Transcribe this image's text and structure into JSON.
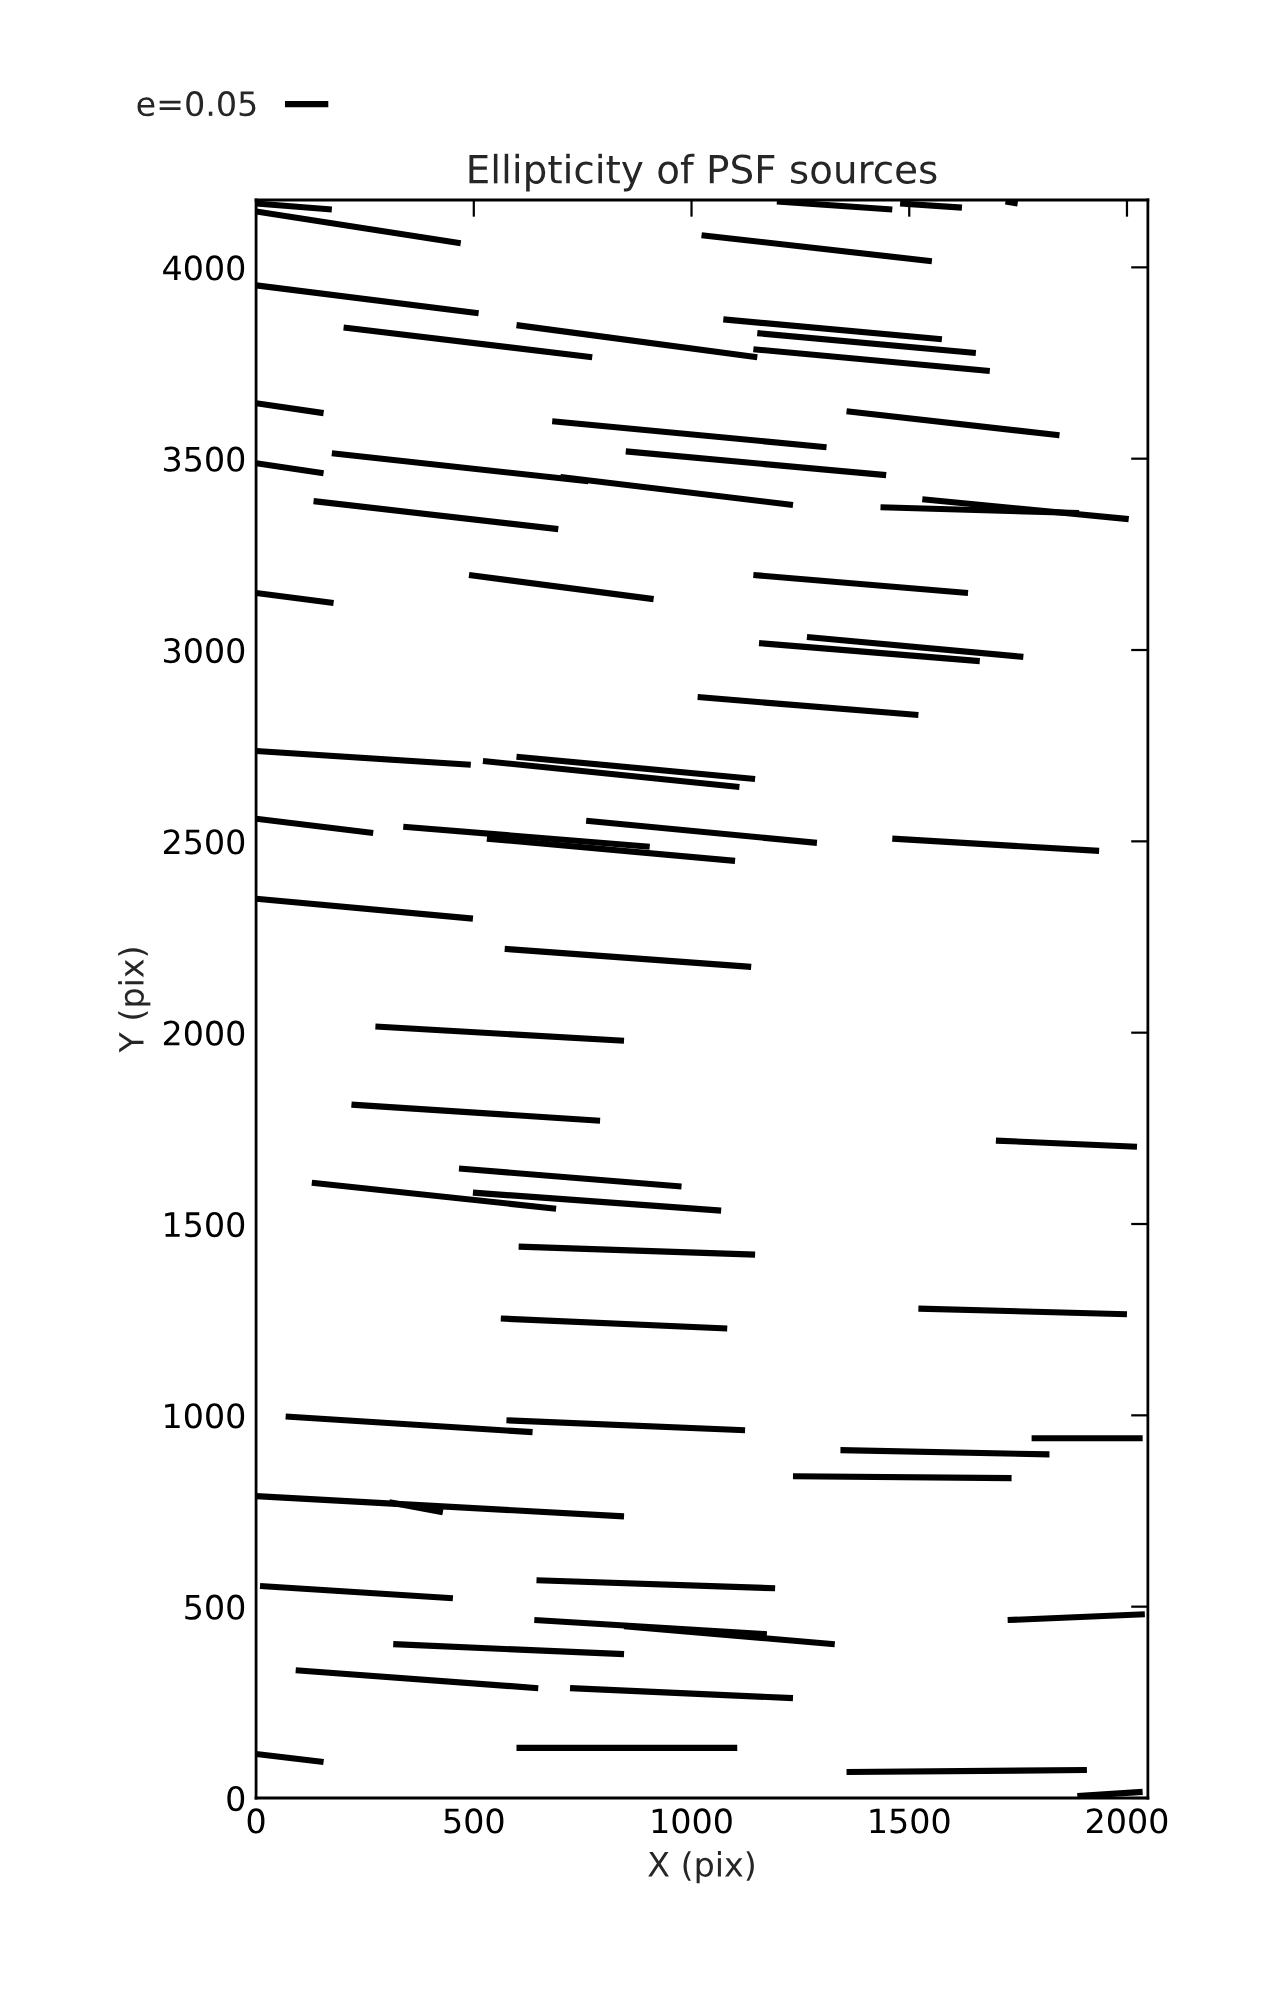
{
  "chart_data": {
    "type": "line",
    "title": "Ellipticity of PSF sources",
    "xlabel": "X (pix)",
    "ylabel": "Y (pix)",
    "xlim": [
      0,
      2048
    ],
    "ylim": [
      0,
      4176
    ],
    "xticks": [
      0,
      500,
      1000,
      1500,
      2000
    ],
    "yticks": [
      0,
      500,
      1000,
      1500,
      2000,
      2500,
      3000,
      3500,
      4000
    ],
    "grid": false,
    "legend": "top left",
    "marker": "none",
    "line_style": "solid",
    "color": "#000000",
    "series": [
      {
        "name": "e=0.05",
        "x": [
          0,
          174
        ],
        "values": [
          4167,
          4151
        ]
      },
      {
        "x": [
          0,
          470
        ],
        "values": [
          4146,
          4063
        ]
      },
      {
        "x": [
          1196,
          1461
        ],
        "values": [
          4172,
          4151
        ]
      },
      {
        "x": [
          1479,
          1621
        ],
        "values": [
          4167,
          4156
        ]
      },
      {
        "x": [
          1721,
          1749
        ],
        "values": [
          4172,
          4167
        ]
      },
      {
        "x": [
          1023,
          1552
        ],
        "values": [
          4084,
          4016
        ]
      },
      {
        "x": [
          0,
          511
        ],
        "values": [
          3953,
          3880
        ]
      },
      {
        "x": [
          201,
          772
        ],
        "values": [
          3843,
          3765
        ]
      },
      {
        "x": [
          598,
          1151
        ],
        "values": [
          3849,
          3765
        ]
      },
      {
        "x": [
          1073,
          1575
        ],
        "values": [
          3864,
          3812
        ]
      },
      {
        "x": [
          1151,
          1653
        ],
        "values": [
          3828,
          3776
        ]
      },
      {
        "x": [
          1142,
          1685
        ],
        "values": [
          3786,
          3729
        ]
      },
      {
        "x": [
          0,
          155
        ],
        "values": [
          3645,
          3619
        ]
      },
      {
        "x": [
          680,
          1310
        ],
        "values": [
          3598,
          3530
        ]
      },
      {
        "x": [
          1356,
          1845
        ],
        "values": [
          3624,
          3561
        ]
      },
      {
        "x": [
          0,
          155
        ],
        "values": [
          3488,
          3462
        ]
      },
      {
        "x": [
          174,
          763
        ],
        "values": [
          3514,
          3441
        ]
      },
      {
        "x": [
          699,
          1233
        ],
        "values": [
          3452,
          3379
        ]
      },
      {
        "x": [
          849,
          1447
        ],
        "values": [
          3519,
          3457
        ]
      },
      {
        "x": [
          1434,
          1890
        ],
        "values": [
          3373,
          3358
        ]
      },
      {
        "x": [
          1530,
          2004
        ],
        "values": [
          3394,
          3342
        ]
      },
      {
        "x": [
          132,
          694
        ],
        "values": [
          3389,
          3316
        ]
      },
      {
        "x": [
          0,
          178
        ],
        "values": [
          3149,
          3123
        ]
      },
      {
        "x": [
          489,
          913
        ],
        "values": [
          3196,
          3133
        ]
      },
      {
        "x": [
          1142,
          1635
        ],
        "values": [
          3196,
          3149
        ]
      },
      {
        "x": [
          1155,
          1662
        ],
        "values": [
          3018,
          2971
        ]
      },
      {
        "x": [
          1265,
          1762
        ],
        "values": [
          3034,
          2982
        ]
      },
      {
        "x": [
          1014,
          1521
        ],
        "values": [
          2877,
          2830
        ]
      },
      {
        "x": [
          0,
          493
        ],
        "values": [
          2736,
          2700
        ]
      },
      {
        "x": [
          521,
          1110
        ],
        "values": [
          2710,
          2642
        ]
      },
      {
        "x": [
          598,
          1146
        ],
        "values": [
          2721,
          2663
        ]
      },
      {
        "x": [
          0,
          269
        ],
        "values": [
          2559,
          2522
        ]
      },
      {
        "x": [
          338,
          904
        ],
        "values": [
          2538,
          2486
        ]
      },
      {
        "x": [
          530,
          1100
        ],
        "values": [
          2507,
          2449
        ]
      },
      {
        "x": [
          758,
          1288
        ],
        "values": [
          2554,
          2496
        ]
      },
      {
        "x": [
          1461,
          1936
        ],
        "values": [
          2507,
          2475
        ]
      },
      {
        "x": [
          0,
          498
        ],
        "values": [
          2350,
          2298
        ]
      },
      {
        "x": [
          571,
          1137
        ],
        "values": [
          2219,
          2172
        ]
      },
      {
        "x": [
          274,
          845
        ],
        "values": [
          2016,
          1979
        ]
      },
      {
        "x": [
          219,
          790
        ],
        "values": [
          1812,
          1770
        ]
      },
      {
        "x": [
          466,
          977
        ],
        "values": [
          1645,
          1598
        ]
      },
      {
        "x": [
          128,
          689
        ],
        "values": [
          1608,
          1540
        ]
      },
      {
        "x": [
          498,
          1068
        ],
        "values": [
          1582,
          1535
        ]
      },
      {
        "x": [
          1699,
          2023
        ],
        "values": [
          1718,
          1702
        ]
      },
      {
        "x": [
          603,
          1146
        ],
        "values": [
          1441,
          1420
        ]
      },
      {
        "x": [
          562,
          1082
        ],
        "values": [
          1253,
          1227
        ]
      },
      {
        "x": [
          1521,
          2000
        ],
        "values": [
          1279,
          1264
        ]
      },
      {
        "x": [
          68,
          635
        ],
        "values": [
          997,
          956
        ]
      },
      {
        "x": [
          575,
          1123
        ],
        "values": [
          987,
          961
        ]
      },
      {
        "x": [
          1342,
          1822
        ],
        "values": [
          909,
          898
        ]
      },
      {
        "x": [
          1781,
          2036
        ],
        "values": [
          940,
          940
        ]
      },
      {
        "x": [
          1233,
          1735
        ],
        "values": [
          841,
          836
        ]
      },
      {
        "x": [
          0,
          845
        ],
        "values": [
          789,
          736
        ]
      },
      {
        "x": [
          306,
          429
        ],
        "values": [
          773,
          747
        ]
      },
      {
        "x": [
          9,
          452
        ],
        "values": [
          554,
          522
        ]
      },
      {
        "x": [
          644,
          1192
        ],
        "values": [
          569,
          548
        ]
      },
      {
        "x": [
          639,
          1173
        ],
        "values": [
          465,
          428
        ]
      },
      {
        "x": [
          845,
          1329
        ],
        "values": [
          449,
          402
        ]
      },
      {
        "x": [
          315,
          845
        ],
        "values": [
          402,
          376
        ]
      },
      {
        "x": [
          91,
          648
        ],
        "values": [
          334,
          287
        ]
      },
      {
        "x": [
          721,
          1233
        ],
        "values": [
          287,
          261
        ]
      },
      {
        "x": [
          1726,
          2041
        ],
        "values": [
          465,
          480
        ]
      },
      {
        "x": [
          0,
          155
        ],
        "values": [
          115,
          94
        ]
      },
      {
        "x": [
          598,
          1105
        ],
        "values": [
          131,
          131
        ]
      },
      {
        "x": [
          1356,
          1908
        ],
        "values": [
          68,
          73
        ]
      },
      {
        "x": [
          1886,
          2036
        ],
        "values": [
          5,
          16
        ]
      }
    ]
  }
}
